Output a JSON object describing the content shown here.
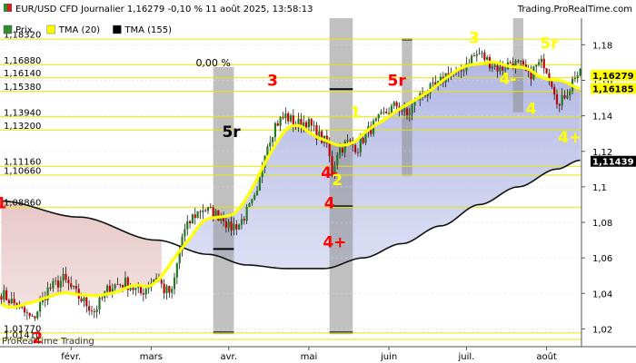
{
  "header": {
    "title": "EUR/USD CFD Journalier 1,16279 -0,10 % 11 août 2025, 13:58:13",
    "source": "Trading.ProRealTime.com"
  },
  "watermark": "ProRealTime Trading",
  "chart_data": {
    "type": "candlestick",
    "legend": [
      {
        "name": "Prix",
        "color": "#2e8b2e"
      },
      {
        "name": "TMA (20)",
        "color": "#ffff00"
      },
      {
        "name": "TMA (155)",
        "color": "#000000"
      }
    ],
    "x_ticks": [
      "févr.",
      "mars",
      "avr.",
      "mai",
      "juin",
      "juil.",
      "août"
    ],
    "y_ticks": [
      1.02,
      1.04,
      1.06,
      1.08,
      1.1,
      1.12,
      1.14,
      1.16,
      1.18
    ],
    "y_tick_labels": [
      "1,02",
      "1,04",
      "1,06",
      "1,08",
      "1,1",
      "1,12",
      "1,14",
      "1,16",
      "1,18"
    ],
    "ylim": [
      1.01,
      1.195
    ],
    "price_current": 1.16279,
    "price_current_label": "1,16279",
    "tma155_current_label": "1,11439",
    "right_marker_label": "1,16185",
    "horizontal_levels": [
      {
        "value": 1.1832,
        "label": "1,18320"
      },
      {
        "value": 1.1688,
        "label": "1,16880"
      },
      {
        "value": 1.1614,
        "label": "1,16140"
      },
      {
        "value": 1.1538,
        "label": "1,15380"
      },
      {
        "value": 1.1394,
        "label": "1,13940"
      },
      {
        "value": 1.132,
        "label": "1,13200"
      },
      {
        "value": 1.1116,
        "label": "1,11160"
      },
      {
        "value": 1.1066,
        "label": "1,10660"
      },
      {
        "value": 1.0886,
        "label": "1,08860"
      },
      {
        "value": 1.0177,
        "label": "1,01770"
      },
      {
        "value": 1.0141,
        "label": "1,01410"
      }
    ],
    "annotations": [
      {
        "text": "1",
        "color": "#ff0000",
        "bar": 0,
        "y": 1.088
      },
      {
        "text": "2",
        "color": "#ff0000",
        "bar": 14,
        "y": 1.012
      },
      {
        "text": "3",
        "color": "#ff0000",
        "bar": 105,
        "y": 1.157
      },
      {
        "text": "5r",
        "color": "#000000",
        "bar": 89,
        "y": 1.128
      },
      {
        "text": "4-",
        "color": "#ff0000",
        "bar": 127,
        "y": 1.105
      },
      {
        "text": "4",
        "color": "#ff0000",
        "bar": 127,
        "y": 1.088
      },
      {
        "text": "4+",
        "color": "#ff0000",
        "bar": 129,
        "y": 1.066
      },
      {
        "text": "1",
        "color": "#ffff00",
        "bar": 137,
        "y": 1.139
      },
      {
        "text": "2",
        "color": "#ffff00",
        "bar": 130,
        "y": 1.101
      },
      {
        "text": "5r",
        "color": "#ff0000",
        "bar": 153,
        "y": 1.157
      },
      {
        "text": "3",
        "color": "#ffff00",
        "bar": 183,
        "y": 1.181
      },
      {
        "text": "4-",
        "color": "#ffff00",
        "bar": 196,
        "y": 1.158
      },
      {
        "text": "4",
        "color": "#ffff00",
        "bar": 205,
        "y": 1.141
      },
      {
        "text": "5r",
        "color": "#ffff00",
        "bar": 212,
        "y": 1.178
      },
      {
        "text": "4+",
        "color": "#ffff00",
        "bar": 220,
        "y": 1.125
      },
      {
        "text": "0,00 %",
        "color": "#000000",
        "bar": 82,
        "y": 1.168
      }
    ]
  }
}
